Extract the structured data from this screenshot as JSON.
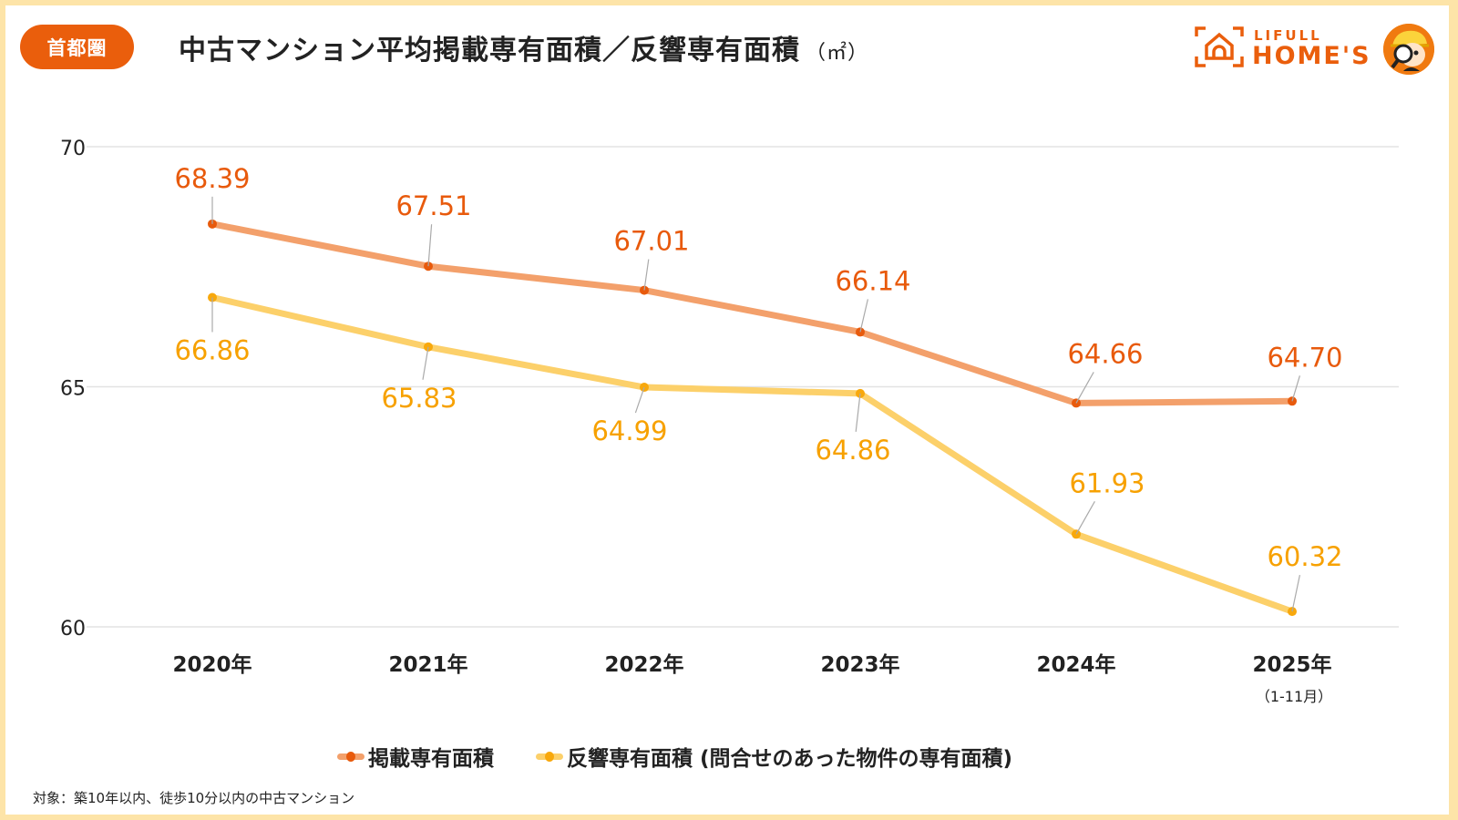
{
  "header": {
    "region_badge": "首都圏",
    "title": "中古マンション平均掲載専有面積／反響専有面積",
    "unit": "（㎡）"
  },
  "logo": {
    "line1": "LIFULL",
    "line2": "HOME'S",
    "icon": "house-in-frame-icon",
    "mascot": "mascot-magnifier-icon"
  },
  "colors": {
    "accent": "#ea5e0c",
    "series1_line": "#f3a06b",
    "series1_point": "#e85a0c",
    "series1_label": "#e85a0c",
    "series2_line": "#fcd06a",
    "series2_point": "#f8a80c",
    "series2_label": "#f7a100",
    "grid": "#e3e3e3",
    "background_frame": "#fde4a8"
  },
  "chart_data": {
    "type": "line",
    "title": "中古マンション平均掲載専有面積／反響専有面積（㎡）",
    "categories": [
      "2020年",
      "2021年",
      "2022年",
      "2023年",
      "2024年",
      "2025年"
    ],
    "category_sublabels": [
      "",
      "",
      "",
      "",
      "",
      "（1-11月）"
    ],
    "series": [
      {
        "name": "掲載専有面積",
        "values": [
          68.39,
          67.51,
          67.01,
          66.14,
          64.66,
          64.7
        ]
      },
      {
        "name": "反響専有面積（問合せのあった物件の専有面積）",
        "values": [
          66.86,
          65.83,
          64.99,
          64.86,
          61.93,
          60.32
        ]
      }
    ],
    "yticks": [
      60,
      65,
      70
    ],
    "ylim": [
      60,
      70
    ],
    "xlabel": "",
    "ylabel": "",
    "grid": true,
    "legend_position": "bottom-center"
  },
  "legend": [
    {
      "label": "掲載専有面積"
    },
    {
      "label": "反響専有面積 (問合せのあった物件の専有面積)"
    }
  ],
  "footnote": "対象：築10年以内、徒歩10分以内の中古マンション"
}
